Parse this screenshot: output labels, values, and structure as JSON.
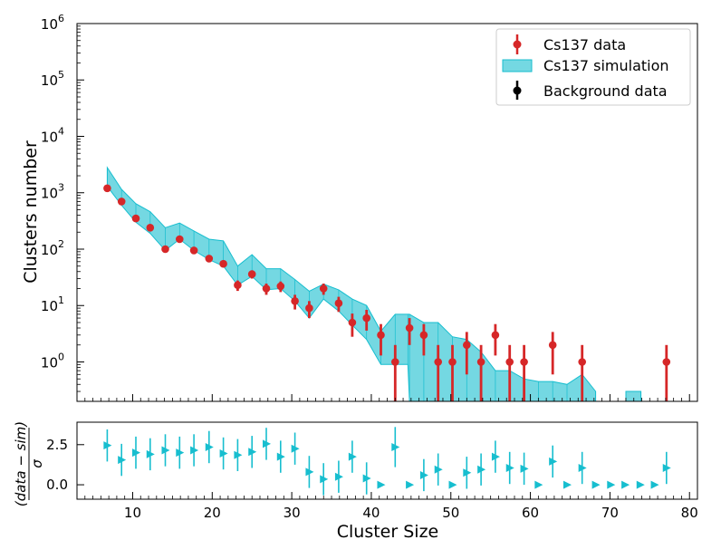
{
  "chart_data": [
    {
      "type": "scatter",
      "panel": "main",
      "yscale": "log",
      "xlim": [
        3,
        81
      ],
      "ylim": [
        0.2,
        1000000
      ],
      "xlabel": "",
      "ylabel": "Clusters number",
      "ytick_bases": [
        "10",
        "10",
        "10",
        "10",
        "10",
        "10",
        "10"
      ],
      "ytick_exponents": [
        "0",
        "1",
        "2",
        "3",
        "4",
        "5",
        "6"
      ],
      "ytick_values": [
        1,
        10,
        100,
        1000,
        10000,
        100000,
        1000000
      ],
      "legend": {
        "placement": "top-right",
        "entries": [
          "Cs137 data",
          "Cs137 simulation",
          "Background data"
        ]
      },
      "colors": {
        "data": "#d62728",
        "simulation": "#17becf",
        "background": "#000000"
      },
      "series": [
        {
          "name": "Cs137 data",
          "x": [
            6.8,
            8.6,
            10.4,
            12.2,
            14.1,
            15.9,
            17.7,
            19.6,
            21.4,
            23.2,
            25.0,
            26.8,
            28.6,
            30.4,
            32.2,
            34.0,
            35.9,
            37.6,
            39.4,
            41.2,
            43.0,
            44.8,
            46.6,
            48.4,
            50.2,
            52.0,
            53.8,
            55.6,
            57.4,
            59.2,
            62.8,
            66.5,
            77.1
          ],
          "y": [
            1200,
            700,
            350,
            240,
            100,
            150,
            95,
            68,
            55,
            23,
            36,
            20,
            22,
            12,
            9,
            20,
            11,
            5,
            6,
            3,
            1,
            4,
            3,
            1,
            1,
            2,
            1,
            3,
            1,
            1,
            2,
            1,
            1
          ],
          "yerr_low": [
            35,
            26,
            19,
            15,
            10,
            12,
            10,
            8,
            7,
            4.8,
            6,
            4.5,
            4.7,
            3.5,
            3,
            4.5,
            3.3,
            2.2,
            2.4,
            1.7,
            1,
            2,
            1.7,
            1,
            1,
            1.4,
            1,
            1.7,
            1,
            1,
            1.4,
            1,
            1
          ],
          "yerr_high": [
            35,
            26,
            19,
            15,
            10,
            12,
            10,
            8,
            7,
            4.8,
            6,
            4.5,
            4.7,
            3.5,
            3,
            4.5,
            3.3,
            2.2,
            2.4,
            1.7,
            1,
            2,
            1.7,
            1,
            1,
            1.4,
            1,
            1.7,
            1,
            1,
            1.4,
            1,
            1
          ]
        },
        {
          "name": "Cs137 simulation",
          "style": "band",
          "x": [
            6.8,
            8.6,
            10.4,
            12.2,
            14.1,
            15.9,
            17.7,
            19.6,
            21.4,
            23.2,
            25.0,
            26.8,
            28.6,
            30.4,
            32.2,
            34.0,
            35.9,
            37.6,
            39.4,
            41.2,
            43.0,
            44.6,
            44.8,
            46.6,
            48.4,
            50.2,
            52.0,
            53.8,
            55.6,
            57.4,
            59.2,
            61.0,
            62.8,
            64.6,
            66.5,
            68.2
          ],
          "y_low": [
            1300,
            600,
            300,
            190,
            95,
            150,
            95,
            65,
            50,
            23,
            33,
            19,
            20,
            12,
            6,
            13,
            8,
            4.5,
            2.5,
            0.9,
            0.9,
            0.9,
            0.2,
            0.2,
            0.2,
            0.2,
            0.2,
            0.2,
            0.2,
            0.2,
            0.2,
            0.2,
            0.2,
            0.2,
            0.2,
            0.2
          ],
          "y_high": [
            2800,
            1150,
            640,
            460,
            240,
            290,
            210,
            150,
            140,
            50,
            80,
            45,
            45,
            29,
            18,
            24,
            19,
            13,
            10,
            3.5,
            7,
            7,
            7,
            5,
            5,
            2.8,
            2.5,
            1.5,
            0.7,
            0.7,
            0.5,
            0.45,
            0.45,
            0.4,
            0.6,
            0.3
          ]
        },
        {
          "name": "Cs137 simulation",
          "style": "band",
          "x": [
            72.0,
            73.9
          ],
          "y_low": [
            0.2,
            0.2
          ],
          "y_high": [
            0.3,
            0.3
          ]
        },
        {
          "name": "Background data",
          "x": [],
          "y": []
        }
      ]
    },
    {
      "type": "scatter",
      "panel": "residual",
      "xlim": [
        3,
        81
      ],
      "ylim": [
        -0.9,
        3.9
      ],
      "xlabel": "Cluster Size",
      "ylabel": "(data − sim) / σ",
      "ylabel_numerator": "(data − sim)",
      "ylabel_denominator": "σ",
      "xticks": [
        "10",
        "20",
        "30",
        "40",
        "50",
        "60",
        "70",
        "80"
      ],
      "yticks": [
        "0.0",
        "2.5"
      ],
      "ytick_values": [
        0.0,
        2.5
      ],
      "colors": {
        "points": "#17becf"
      },
      "series": [
        {
          "name": "",
          "marker": "triangle-right",
          "x": [
            6.8,
            8.6,
            10.4,
            12.2,
            14.1,
            15.9,
            17.7,
            19.6,
            21.4,
            23.2,
            25.0,
            26.8,
            28.6,
            30.4,
            32.2,
            34.0,
            35.9,
            37.6,
            39.4,
            41.2,
            43.0,
            44.8,
            46.6,
            48.4,
            50.2,
            52.0,
            53.8,
            55.6,
            57.4,
            59.2,
            61.0,
            62.8,
            64.6,
            66.5,
            68.2,
            70.1,
            71.9,
            73.8,
            75.6,
            77.1
          ],
          "y": [
            2.45,
            1.55,
            2.0,
            1.9,
            2.15,
            2.0,
            2.15,
            2.35,
            1.95,
            1.85,
            2.05,
            2.55,
            1.75,
            2.25,
            0.8,
            0.35,
            0.5,
            1.75,
            0.4,
            0.0,
            2.35,
            0.0,
            0.6,
            0.95,
            0.0,
            0.75,
            0.95,
            1.75,
            1.05,
            1.0,
            0.0,
            1.45,
            0.0,
            1.05,
            0.0,
            0.0,
            0.0,
            0.0,
            0.0,
            1.05
          ],
          "yerr": [
            1.0,
            1.0,
            1.0,
            1.0,
            1.0,
            1.0,
            1.0,
            1.0,
            1.0,
            1.0,
            1.0,
            1.0,
            1.0,
            1.0,
            1.0,
            1.0,
            1.0,
            1.0,
            1.0,
            0,
            1.25,
            0,
            1.0,
            1.0,
            0,
            1.0,
            1.0,
            1.0,
            1.0,
            1.0,
            0,
            1.0,
            0,
            1.0,
            0,
            0,
            0,
            0,
            0,
            1.0
          ]
        }
      ]
    }
  ]
}
